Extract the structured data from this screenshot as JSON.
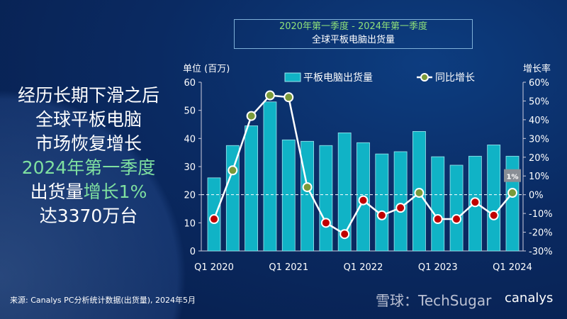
{
  "headline": {
    "lines": [
      {
        "text": "经历长期下滑之后",
        "hl": false
      },
      {
        "text": "全球平板电脑",
        "hl": false
      },
      {
        "text": "市场恢复增长",
        "hl": false
      },
      {
        "text": "2024年第一季度",
        "hl": true
      }
    ],
    "line5a": "出货量",
    "line5b": "增长1%",
    "line6": "达3370万台"
  },
  "title": {
    "line1": "2020年第一季度 - 2024年第一季度",
    "line2": "全球平板电脑出货量"
  },
  "source": "来源: Canalys PC分析统计数据(出货量), 2024年5月",
  "watermark": "雪球：TechSugar",
  "logo": "canalys",
  "colors": {
    "bar": "#10b3c6",
    "line": "#ffffff",
    "positive": "#7a9a3a",
    "negative": "#c00000"
  },
  "chart_data": {
    "type": "bar+line",
    "ylabel": "单位 (百万)",
    "y2label": "增长率",
    "ylim": [
      0,
      60
    ],
    "y2lim": [
      -30,
      60
    ],
    "yticks": [
      "0",
      "10",
      "20",
      "30",
      "40",
      "50",
      "60"
    ],
    "y2ticks": [
      "-30%",
      "-20%",
      "-10%",
      "0%",
      "10%",
      "20%",
      "30%",
      "40%",
      "50%",
      "60%"
    ],
    "categories": [
      "Q1 2020",
      "Q2 2020",
      "Q3 2020",
      "Q4 2020",
      "Q1 2021",
      "Q2 2021",
      "Q3 2021",
      "Q4 2021",
      "Q1 2022",
      "Q2 2022",
      "Q3 2022",
      "Q4 2022",
      "Q1 2023",
      "Q2 2023",
      "Q3 2023",
      "Q4 2023",
      "Q1 2024"
    ],
    "xtick_labels": [
      "Q1 2020",
      "Q1 2021",
      "Q1 2022",
      "Q1 2023",
      "Q1 2024"
    ],
    "series": [
      {
        "name": "平板电脑出货量",
        "type": "bar",
        "values": [
          26,
          37.5,
          44.5,
          53,
          39.5,
          39,
          37.5,
          42,
          38.5,
          34.5,
          35.3,
          42.5,
          33.5,
          30.5,
          33.7,
          37.7,
          33.7
        ]
      },
      {
        "name": "同比增长",
        "type": "line",
        "axis": "right",
        "values": [
          -13,
          13,
          42,
          53,
          52,
          4,
          -15,
          -21,
          -3,
          -11,
          -7,
          1,
          -13,
          -13,
          -4,
          -11,
          1
        ]
      }
    ],
    "annotation": "1%",
    "legend": "top"
  }
}
